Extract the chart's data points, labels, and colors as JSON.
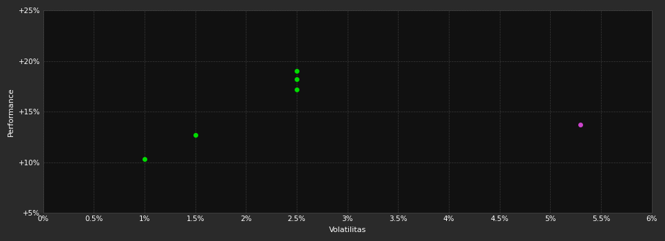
{
  "figure_color": "#2a2a2a",
  "plot_bg_color": "#111111",
  "grid_color": "#444444",
  "xlabel": "Volatilitas",
  "ylabel": "Performance",
  "xlim": [
    0.0,
    0.06
  ],
  "ylim": [
    0.05,
    0.25
  ],
  "xtick_labels": [
    "0%",
    "0.5%",
    "1%",
    "1.5%",
    "2%",
    "2.5%",
    "3%",
    "3.5%",
    "4%",
    "4.5%",
    "5%",
    "5.5%",
    "6%"
  ],
  "xtick_values": [
    0.0,
    0.005,
    0.01,
    0.015,
    0.02,
    0.025,
    0.03,
    0.035,
    0.04,
    0.045,
    0.05,
    0.055,
    0.06
  ],
  "ytick_labels": [
    "+5%",
    "+10%",
    "+15%",
    "+20%",
    "+25%"
  ],
  "ytick_values": [
    0.05,
    0.1,
    0.15,
    0.2,
    0.25
  ],
  "green_points": [
    [
      0.01,
      0.103
    ],
    [
      0.015,
      0.127
    ],
    [
      0.025,
      0.19
    ],
    [
      0.025,
      0.182
    ],
    [
      0.025,
      0.172
    ]
  ],
  "magenta_points": [
    [
      0.053,
      0.137
    ]
  ],
  "green_color": "#00dd00",
  "magenta_color": "#cc44cc",
  "marker_size": 5,
  "text_color": "#ffffff",
  "label_fontsize": 8,
  "tick_fontsize": 7.5
}
